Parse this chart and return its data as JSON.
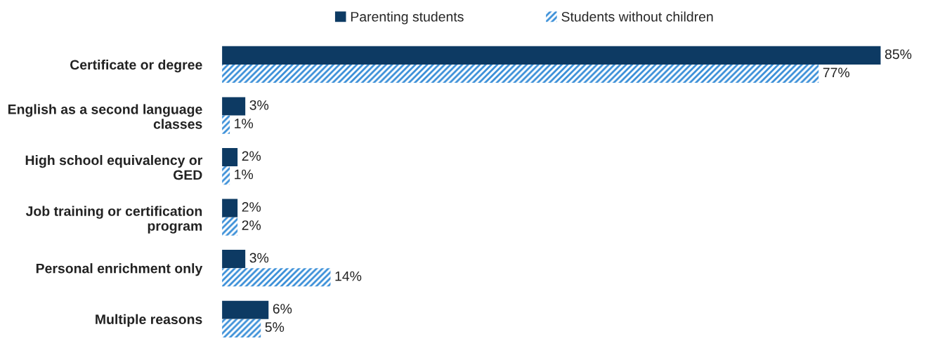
{
  "chart_data": {
    "type": "bar",
    "orientation": "horizontal",
    "categories": [
      "Certificate or degree",
      "English as a second language classes",
      "High school equivalency or GED",
      "Job training or certification program",
      "Personal enrichment only",
      "Multiple reasons"
    ],
    "series": [
      {
        "name": "Parenting students",
        "color": "#0d3a63",
        "values": [
          85,
          3,
          2,
          2,
          3,
          6
        ],
        "value_labels": [
          "85%",
          "3%",
          "2%",
          "2%",
          "3%",
          "6%"
        ]
      },
      {
        "name": "Students without children",
        "color": "#3a8fd8",
        "values": [
          77,
          1,
          1,
          2,
          14,
          5
        ],
        "value_labels": [
          "77%",
          "1%",
          "1%",
          "2%",
          "14%",
          "5%"
        ]
      }
    ],
    "legend": "top",
    "grid": false
  }
}
